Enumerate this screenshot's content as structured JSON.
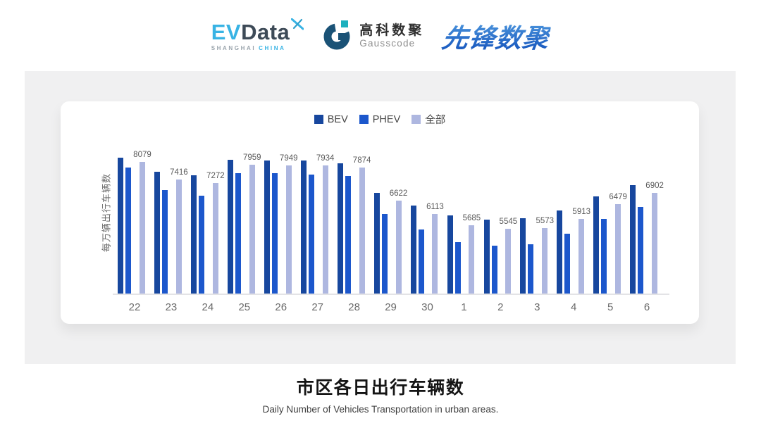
{
  "header": {
    "evdata": {
      "ev": "EV",
      "data": "Data",
      "sub_left": "SHANGHAI",
      "sub_right": "CHINA"
    },
    "gausscode": {
      "cn": "高科数聚",
      "en": "Gausscode"
    },
    "pioneer": {
      "text": "先锋数聚"
    }
  },
  "chart_data": {
    "type": "bar",
    "title": "市区各日出行车辆数",
    "subtitle": "Daily Number of Vehicles Transportation in urban areas.",
    "ylabel": "每万辆出行车辆数",
    "xlabel": "",
    "categories": [
      "22",
      "23",
      "24",
      "25",
      "26",
      "27",
      "28",
      "29",
      "30",
      "1",
      "2",
      "3",
      "4",
      "5",
      "6"
    ],
    "series": [
      {
        "key": "bev",
        "name": "BEV",
        "color": "#17479E",
        "labels_visible": false,
        "values": [
          8230,
          7700,
          7580,
          8160,
          8140,
          8130,
          8030,
          6910,
          6430,
          6050,
          5900,
          5940,
          6240,
          6770,
          7190
        ]
      },
      {
        "key": "phev",
        "name": "PHEV",
        "color": "#1C57CC",
        "labels_visible": false,
        "values": [
          7850,
          7010,
          6800,
          7650,
          7650,
          7600,
          7540,
          6100,
          5520,
          5050,
          4920,
          4950,
          5350,
          5930,
          6370
        ]
      },
      {
        "key": "all",
        "name": "全部",
        "color": "#AEB7E0",
        "labels_visible": true,
        "values": [
          8079,
          7416,
          7272,
          7959,
          7949,
          7934,
          7874,
          6622,
          6113,
          5685,
          5545,
          5573,
          5913,
          6479,
          6902
        ]
      }
    ],
    "ylim": [
      3100,
      8500
    ],
    "legend_position": "top-center",
    "grid": false,
    "axis_line_color": "#E3E3E6",
    "value_label_color": "#5A5A5A",
    "tick_label_color": "#6A6A6A"
  }
}
